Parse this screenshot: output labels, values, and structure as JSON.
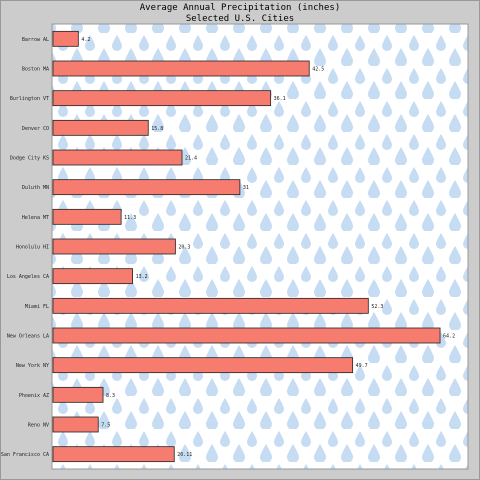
{
  "chart_data": {
    "type": "bar",
    "orientation": "horizontal",
    "title": "Average Annual Precipitation (inches)",
    "subtitle": "Selected U.S. Cities",
    "categories": [
      "Barrow AL",
      "Boston MA",
      "Burlington VT",
      "Denver CO",
      "Dodge City KS",
      "Duluth MN",
      "Helena MT",
      "Honolulu HI",
      "Los Angeles CA",
      "Miami FL",
      "New Orleans LA",
      "New York NY",
      "Phoenix AZ",
      "Reno NV",
      "San Francisco CA"
    ],
    "value_labels": [
      "4.2",
      "42.5",
      "36.1",
      "15.8",
      "21.4",
      "31",
      "11.3",
      "20.3",
      "13.2",
      "52.3",
      "64.2",
      "49.7",
      "8.3",
      "7.5",
      "20.11"
    ],
    "values": [
      4.2,
      42.5,
      36.1,
      15.8,
      21.4,
      31,
      11.3,
      20.3,
      13.2,
      52.3,
      64.2,
      49.7,
      8.3,
      7.5,
      20.11
    ],
    "xlim": [
      0,
      69
    ],
    "grid": false,
    "legend": "none",
    "bar_color": "#f57c6e",
    "bar_stroke": "#222222",
    "background_color": "#ffffff",
    "drop_color": "#c5dcf3",
    "frame_color": "#cccccc"
  }
}
